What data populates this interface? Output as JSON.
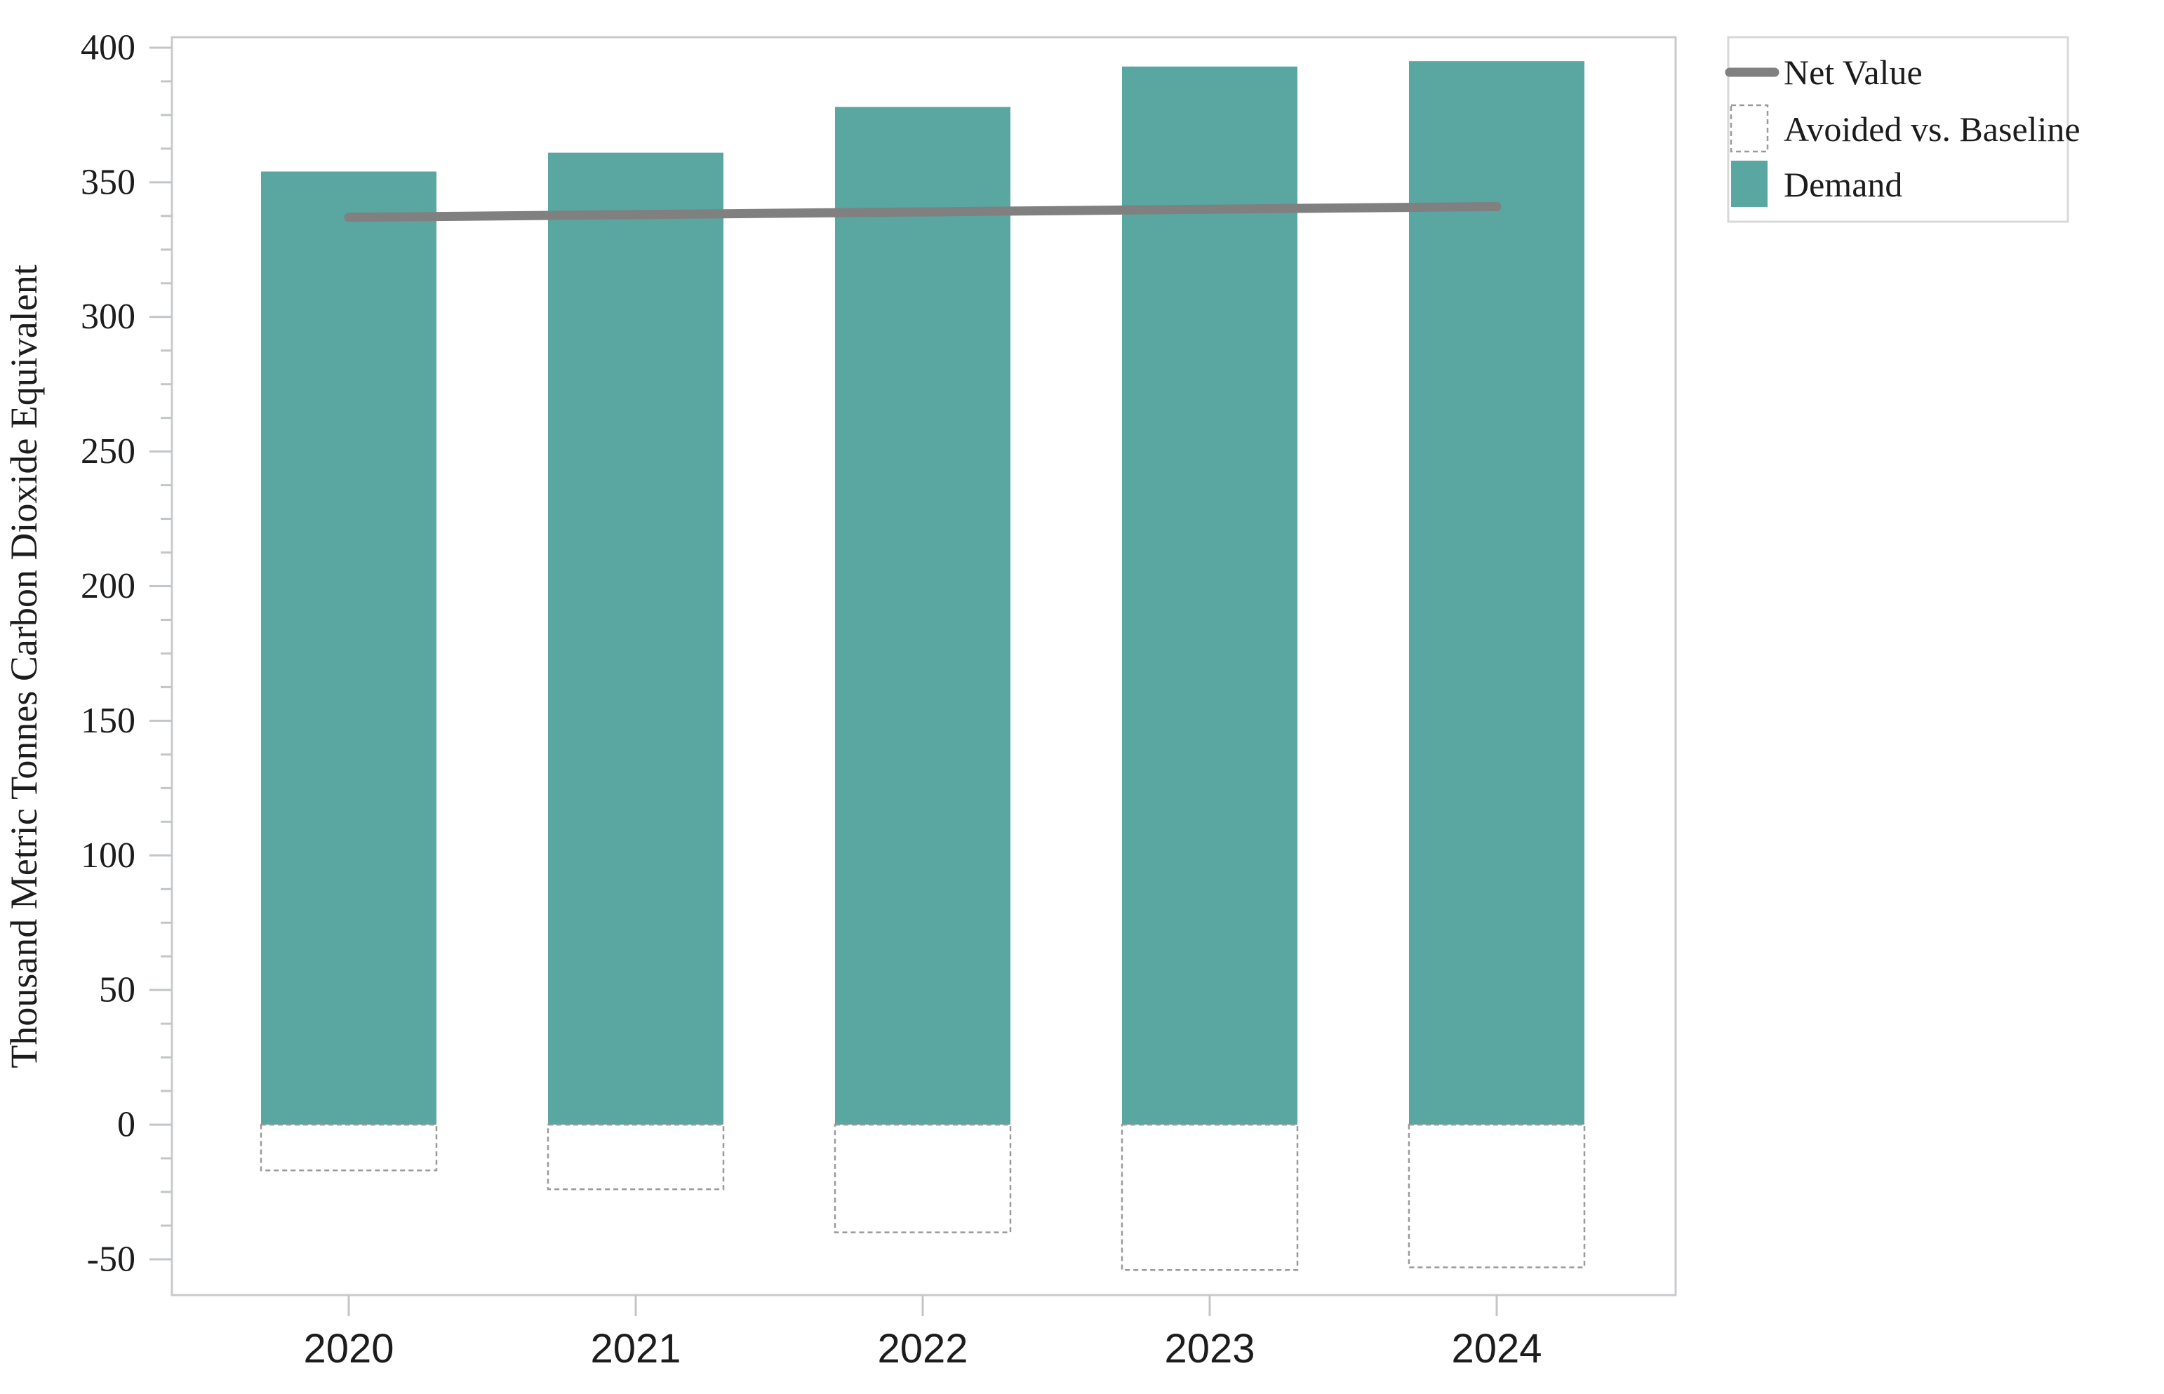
{
  "page": {
    "background_color": "#ffffff"
  },
  "chart_data": {
    "type": "bar",
    "title": "",
    "xlabel": "",
    "ylabel": "Thousand Metric Tonnes Carbon Dioxide Equivalent",
    "categories": [
      "2020",
      "2021",
      "2022",
      "2023",
      "2024"
    ],
    "series": [
      {
        "name": "Demand",
        "kind": "bar",
        "style": "filled",
        "color": "#5aa6a1",
        "values": [
          354,
          361,
          378,
          393,
          395
        ]
      },
      {
        "name": "Avoided vs. Baseline",
        "kind": "bar",
        "style": "dashed-outline",
        "fill": "none",
        "border_color": "#9a9a9a",
        "values": [
          -17,
          -24,
          -40,
          -54,
          -53
        ]
      },
      {
        "name": "Net Value",
        "kind": "line",
        "color": "#808080",
        "values": [
          337,
          338,
          339,
          340,
          341
        ]
      }
    ],
    "ylim": [
      -63.3,
      403.9
    ],
    "yticks_major": [
      400,
      350,
      300,
      250,
      200,
      150,
      100,
      50,
      0,
      -50
    ],
    "ytick_minor_step": 12.5,
    "grid": "off",
    "legend": {
      "position": "outside-top-right",
      "items": [
        {
          "label": "Net Value",
          "swatch": "line"
        },
        {
          "label": "Avoided vs. Baseline",
          "swatch": "dashed-box"
        },
        {
          "label": "Demand",
          "swatch": "filled-box"
        }
      ]
    },
    "colors": {
      "bar_fill": "#5aa6a1",
      "net_line": "#808080",
      "dashed_border": "#9a9a9a",
      "frame": "#c8cacc",
      "tick": "#c3c6c8",
      "text": "#1c1c1c",
      "legend_border": "#d8d8d8"
    }
  }
}
